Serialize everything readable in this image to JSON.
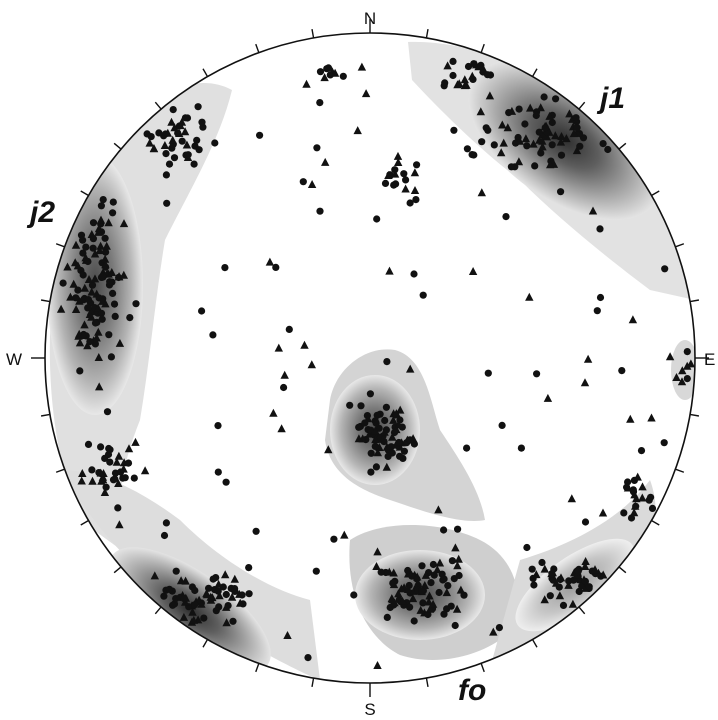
{
  "compass": {
    "north": "N",
    "south": "S",
    "east": "E",
    "west": "W"
  },
  "set_labels": {
    "j1": "j1",
    "j2": "j2",
    "fo": "fo"
  },
  "legend": {
    "markers": [
      "filled-circle",
      "filled-triangle"
    ],
    "density_shades": [
      "#f2f2f2",
      "#dcdcdc",
      "#c2c2c2",
      "#9e9e9e",
      "#6e6e6e",
      "#3c3c3c"
    ]
  },
  "colors": {
    "outline": "#111111",
    "marker": "#111111",
    "background": "#ffffff"
  }
}
